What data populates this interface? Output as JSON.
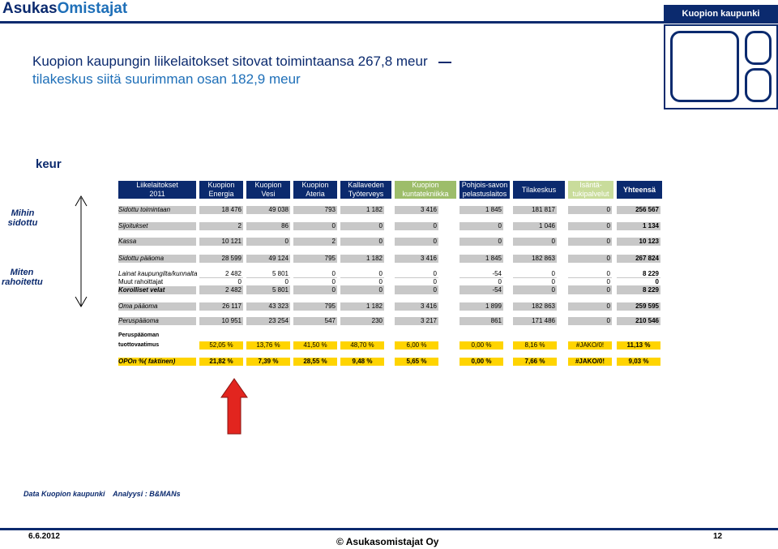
{
  "header": {
    "brand_part1": "Asukas",
    "brand_part2": "Omistajat",
    "city_label": "Kuopion kaupunki"
  },
  "title": {
    "line1": "Kuopion kaupungin liikelaitokset sitovat toimintaansa 267,8 meur",
    "line2": "tilakeskus siitä suurimman osan 182,9 meur"
  },
  "unit_label": "keur",
  "columns": [
    {
      "l1": "Liikelaitokset",
      "l2": "2011",
      "style": "navy"
    },
    {
      "l1": "Kuopion",
      "l2": "Energia",
      "style": "navy"
    },
    {
      "l1": "Kuopion",
      "l2": "Vesi",
      "style": "navy"
    },
    {
      "l1": "Kuopion",
      "l2": "Ateria",
      "style": "navy"
    },
    {
      "l1": "Kallaveden",
      "l2": "Työterveys",
      "style": "navy"
    },
    {
      "l1": "Kuopion",
      "l2": "kuntatekniikka",
      "style": "green"
    },
    {
      "l1": "Pohjois-savon",
      "l2": "pelastuslaitos",
      "style": "navy"
    },
    {
      "l1": "",
      "l2": "Tilakeskus",
      "style": "navy"
    },
    {
      "l1": "Isäntä-",
      "l2": "tukipalvelut",
      "style": "lgreen"
    },
    {
      "l1": "Yhteensä",
      "l2": "",
      "style": "white"
    }
  ],
  "side_labels": {
    "mihin_1": "Mihin",
    "mihin_2": "sidottu",
    "miten_1": "Miten",
    "miten_2": "rahoitettu"
  },
  "rows": {
    "sidottu_toimintaan": {
      "label": "Sidottu toimintaan",
      "values": [
        "18 476",
        "49 038",
        "793",
        "1 182",
        "3 416",
        "1 845",
        "181 817",
        "0",
        "256 567"
      ]
    },
    "sijoitukset": {
      "label": "Sijoitukset",
      "values": [
        "2",
        "86",
        "0",
        "0",
        "0",
        "0",
        "1 046",
        "0",
        "1 134"
      ]
    },
    "kassa": {
      "label": "Kassa",
      "values": [
        "10 121",
        "0",
        "2",
        "0",
        "0",
        "0",
        "0",
        "0",
        "10 123"
      ]
    },
    "sidottu_paaoma": {
      "label": "Sidottu pääoma",
      "values": [
        "28 599",
        "49 124",
        "795",
        "1 182",
        "3 416",
        "1 845",
        "182 863",
        "0",
        "267 824"
      ]
    },
    "lainat": {
      "label": "Lainat kaupungilta/kunnalta",
      "values": [
        "2 482",
        "5 801",
        "0",
        "0",
        "0",
        "-54",
        "0",
        "0",
        "8 229"
      ]
    },
    "muut": {
      "label": "Muut rahoittajat",
      "values": [
        "0",
        "0",
        "0",
        "0",
        "0",
        "0",
        "0",
        "0",
        "0"
      ]
    },
    "korolliset": {
      "label": "Korolliset velat",
      "values": [
        "2 482",
        "5 801",
        "0",
        "0",
        "0",
        "-54",
        "0",
        "0",
        "8 229"
      ]
    },
    "oma_paaoma": {
      "label": "Oma pääoma",
      "values": [
        "26 117",
        "43 323",
        "795",
        "1 182",
        "3 416",
        "1 899",
        "182 863",
        "0",
        "259 595"
      ]
    },
    "peruspaaoma": {
      "label": "Peruspääoma",
      "values": [
        "10 951",
        "23 254",
        "547",
        "230",
        "3 217",
        "861",
        "171 486",
        "0",
        "210 546"
      ]
    },
    "tuotto": {
      "label1": "Peruspääoman",
      "label2": "tuottovaatimus",
      "values": [
        "52,05 %",
        "13,76 %",
        "41,50 %",
        "48,70 %",
        "6,00 %",
        "0,00 %",
        "8,16 %",
        "#JAKO/0!",
        "11,13 %"
      ]
    },
    "opon": {
      "label": "OPOn %( faktinen)",
      "values": [
        "21,82 %",
        "7,39 %",
        "28,55 %",
        "9,48 %",
        "5,65 %",
        "0,00 %",
        "7,66 %",
        "#JAKO/0!",
        "9,03 %"
      ]
    }
  },
  "footer": {
    "source": "Data Kuopion kaupunki    Analyysi : B&MANs",
    "date": "6.6.2012",
    "copyright": "© Asukasomistajat Oy",
    "page": "12"
  },
  "colors": {
    "navy": "#0b2a6e",
    "green": "#9dbd6a",
    "light_green": "#c9dc9b",
    "gray_bar": "#c8c8c8",
    "yellow_bar": "#ffd400",
    "red_arrow": "#e2251f"
  }
}
